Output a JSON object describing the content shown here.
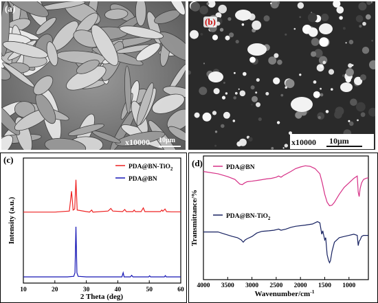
{
  "panel_a": {
    "label": "(a)",
    "magnification": "x10000",
    "scale_bar": "10μm"
  },
  "panel_b": {
    "label": "(b)",
    "magnification": "x10000",
    "scale_bar": "10μm"
  },
  "colors": {
    "red": "#ee2020",
    "blue": "#1515b5",
    "magenta": "#d62f86",
    "navy": "#152060",
    "label_b_red": "#cc1111"
  },
  "chart_data": [
    {
      "panel": "(c)",
      "type": "line",
      "xlabel": "2 Theta (deg)",
      "ylabel": "Intensity (a.u.)",
      "xlim": [
        10,
        60
      ],
      "xticks": [
        "10",
        "20",
        "30",
        "40",
        "50",
        "60"
      ],
      "legend_position": "top-right",
      "series": [
        {
          "name_prefix": "PDA@BN-TiO",
          "name_sub": "2",
          "color": "#ee2020",
          "points": [
            [
              10,
              0.64
            ],
            [
              20,
              0.64
            ],
            [
              24.6,
              0.65
            ],
            [
              25.3,
              0.84
            ],
            [
              25.8,
              0.66
            ],
            [
              26.3,
              0.67
            ],
            [
              26.7,
              0.95
            ],
            [
              27.1,
              0.66
            ],
            [
              31,
              0.64
            ],
            [
              31.7,
              0.66
            ],
            [
              32.1,
              0.64
            ],
            [
              36.9,
              0.65
            ],
            [
              37.8,
              0.675
            ],
            [
              38.4,
              0.65
            ],
            [
              41.5,
              0.645
            ],
            [
              42.2,
              0.665
            ],
            [
              42.7,
              0.645
            ],
            [
              44.8,
              0.645
            ],
            [
              45.2,
              0.66
            ],
            [
              45.6,
              0.645
            ],
            [
              47.4,
              0.645
            ],
            [
              48.1,
              0.68
            ],
            [
              48.6,
              0.645
            ],
            [
              53.5,
              0.645
            ],
            [
              54.0,
              0.66
            ],
            [
              54.3,
              0.648
            ],
            [
              55.0,
              0.67
            ],
            [
              55.5,
              0.645
            ],
            [
              57,
              0.643
            ],
            [
              60,
              0.643
            ]
          ]
        },
        {
          "name": "PDA@BN",
          "color": "#1515b5",
          "points": [
            [
              10,
              0.02
            ],
            [
              24,
              0.02
            ],
            [
              26,
              0.025
            ],
            [
              26.4,
              0.06
            ],
            [
              26.7,
              0.5
            ],
            [
              27.0,
              0.06
            ],
            [
              27.4,
              0.025
            ],
            [
              30,
              0.02
            ],
            [
              41.3,
              0.02
            ],
            [
              41.7,
              0.06
            ],
            [
              42.0,
              0.02
            ],
            [
              44,
              0.02
            ],
            [
              44.4,
              0.035
            ],
            [
              44.8,
              0.02
            ],
            [
              49.8,
              0.02
            ],
            [
              50.1,
              0.03
            ],
            [
              50.4,
              0.02
            ],
            [
              54.8,
              0.02
            ],
            [
              55.1,
              0.032
            ],
            [
              55.4,
              0.02
            ],
            [
              60,
              0.02
            ]
          ]
        }
      ]
    },
    {
      "panel": "(d)",
      "type": "line",
      "xlabel_prefix": "Wavenumber/cm",
      "xlabel_sup": "-1",
      "ylabel": "Transmittance/%",
      "xlim": [
        4000,
        600
      ],
      "xticks": [
        "4000",
        "3500",
        "3000",
        "2500",
        "2000",
        "1500",
        "1000"
      ],
      "series": [
        {
          "name": "PDA@BN",
          "color": "#d62f86",
          "points": [
            [
              4000,
              0.9
            ],
            [
              3700,
              0.88
            ],
            [
              3500,
              0.855
            ],
            [
              3350,
              0.83
            ],
            [
              3250,
              0.79
            ],
            [
              3200,
              0.785
            ],
            [
              3150,
              0.8
            ],
            [
              3100,
              0.81
            ],
            [
              3000,
              0.815
            ],
            [
              2850,
              0.825
            ],
            [
              2700,
              0.835
            ],
            [
              2600,
              0.84
            ],
            [
              2500,
              0.85
            ],
            [
              2450,
              0.86
            ],
            [
              2400,
              0.85
            ],
            [
              2350,
              0.865
            ],
            [
              2200,
              0.9
            ],
            [
              2100,
              0.925
            ],
            [
              2000,
              0.94
            ],
            [
              1900,
              0.95
            ],
            [
              1800,
              0.945
            ],
            [
              1700,
              0.925
            ],
            [
              1600,
              0.88
            ],
            [
              1550,
              0.8
            ],
            [
              1500,
              0.7
            ],
            [
              1450,
              0.63
            ],
            [
              1400,
              0.6
            ],
            [
              1350,
              0.605
            ],
            [
              1300,
              0.63
            ],
            [
              1200,
              0.7
            ],
            [
              1100,
              0.76
            ],
            [
              1000,
              0.8
            ],
            [
              900,
              0.84
            ],
            [
              830,
              0.86
            ],
            [
              810,
              0.72
            ],
            [
              790,
              0.68
            ],
            [
              770,
              0.75
            ],
            [
              740,
              0.8
            ],
            [
              700,
              0.83
            ],
            [
              650,
              0.84
            ],
            [
              600,
              0.845
            ]
          ]
        },
        {
          "name_prefix": "PDA@BN-TiO",
          "name_sub": "2",
          "color": "#152060",
          "points": [
            [
              4000,
              0.37
            ],
            [
              3700,
              0.37
            ],
            [
              3550,
              0.35
            ],
            [
              3400,
              0.33
            ],
            [
              3300,
              0.32
            ],
            [
              3220,
              0.3
            ],
            [
              3180,
              0.28
            ],
            [
              3140,
              0.3
            ],
            [
              3100,
              0.31
            ],
            [
              3000,
              0.33
            ],
            [
              2900,
              0.36
            ],
            [
              2800,
              0.375
            ],
            [
              2650,
              0.38
            ],
            [
              2550,
              0.385
            ],
            [
              2500,
              0.39
            ],
            [
              2450,
              0.395
            ],
            [
              2400,
              0.385
            ],
            [
              2300,
              0.395
            ],
            [
              2200,
              0.41
            ],
            [
              2100,
              0.42
            ],
            [
              1900,
              0.43
            ],
            [
              1750,
              0.44
            ],
            [
              1650,
              0.46
            ],
            [
              1600,
              0.45
            ],
            [
              1560,
              0.35
            ],
            [
              1540,
              0.38
            ],
            [
              1500,
              0.3
            ],
            [
              1480,
              0.32
            ],
            [
              1450,
              0.17
            ],
            [
              1420,
              0.12
            ],
            [
              1400,
              0.1
            ],
            [
              1380,
              0.12
            ],
            [
              1350,
              0.2
            ],
            [
              1300,
              0.28
            ],
            [
              1200,
              0.32
            ],
            [
              1100,
              0.33
            ],
            [
              1000,
              0.34
            ],
            [
              900,
              0.35
            ],
            [
              830,
              0.34
            ],
            [
              810,
              0.25
            ],
            [
              790,
              0.29
            ],
            [
              770,
              0.3
            ],
            [
              740,
              0.33
            ],
            [
              700,
              0.34
            ],
            [
              650,
              0.34
            ],
            [
              600,
              0.34
            ]
          ]
        }
      ]
    }
  ]
}
